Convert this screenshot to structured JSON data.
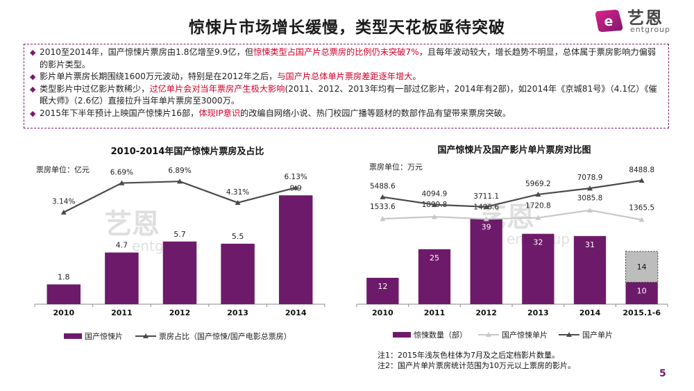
{
  "page": {
    "title": "惊悚片市场增长缓慢，类型天花板亟待突破",
    "page_number": "5",
    "logo": {
      "cn": "艺恩",
      "en": "entgroup"
    },
    "watermark": {
      "cn": "艺恩",
      "en": "entgroup"
    }
  },
  "bullets": [
    {
      "parts": [
        "2010至2014年，国产惊悚片票房由1.8亿增至9.9亿，但",
        "惊悚类型占国产片总票房的比例仍未突破7%",
        "，且每年波动较大，增长趋势不明显，总体属于票房影响力偏弱的影片类型。"
      ]
    },
    {
      "parts": [
        "影片单片票房长期围绕1600万元波动，特别是在2012年之后，",
        "与国产片总体单片票房差距逐年增大",
        "。"
      ]
    },
    {
      "parts": [
        "类型影片中过亿影片数稀少，",
        "过亿单片会对当年票房产生极大影响",
        "(2011、2012、2013年均有一部过亿影片，2014年有2部)，如2014年《京城81号》（4.1亿）《催眠大师》（2.6亿）直接拉升当年单片票房至3000万。"
      ]
    },
    {
      "parts": [
        "2015年下半年预计上映国产惊悚片16部，",
        "体现IP意识",
        "的改编自网络小说、热门校园广播等题材的数部作品有望带来票房突破。"
      ]
    }
  ],
  "chart_data": [
    {
      "type": "bar+line",
      "title": "2010-2014年国产惊悚片票房及占比",
      "unit_label": "票房单位：亿元",
      "categories": [
        "2010",
        "2011",
        "2012",
        "2013",
        "2014"
      ],
      "bars": {
        "name": "国产惊悚片",
        "values": [
          1.8,
          4.7,
          5.7,
          5.5,
          9.9
        ],
        "labels": [
          "1.8",
          "4.7",
          "5.7",
          "5.5",
          "9.9"
        ],
        "color": "#6e1a6a"
      },
      "line": {
        "name": "票房占比（国产惊悚/国产电影总票房）",
        "values": [
          3.14,
          6.69,
          6.89,
          4.31,
          6.13
        ],
        "labels": [
          "3.14%",
          "6.69%",
          "6.89%",
          "4.31%",
          "6.13%"
        ],
        "color": "#4a4a4a"
      },
      "ylim_bars": [
        0,
        12
      ],
      "ylim_line": [
        -8,
        8
      ]
    },
    {
      "type": "bar+line",
      "title": "国产惊悚片及国产影片单片票房对比图",
      "unit_label": "票房单位：万元",
      "categories": [
        "2010",
        "2011",
        "2012",
        "2013",
        "2014",
        "2015.1-6"
      ],
      "bars": {
        "name": "惊悚数量（部）",
        "values": [
          12,
          25,
          39,
          32,
          31,
          10
        ],
        "labels": [
          "12",
          "25",
          "39",
          "32",
          "31",
          "10"
        ],
        "color": "#6e1a6a"
      },
      "bar_extra": {
        "category": "2015.1-6",
        "value": 14,
        "label": "14",
        "color": "#bdbdbd"
      },
      "series": [
        {
          "name": "国产惊悚单片",
          "values": [
            1533.6,
            1899.8,
            1496.6,
            1720.8,
            3085.8,
            1365.5
          ],
          "labels": [
            "1533.6",
            "1899.8",
            "1496.6",
            "1720.8",
            "3085.8",
            "1365.5"
          ],
          "color": "#c8c8c8"
        },
        {
          "name": "国产单片",
          "values": [
            5488.6,
            4094.9,
            3711.1,
            5969.2,
            7078.9,
            8488.8
          ],
          "labels": [
            "5488.6",
            "4094.9",
            "3711.1",
            "5969.2",
            "7078.9",
            "8488.8"
          ],
          "color": "#4a4a4a"
        }
      ],
      "ylim_bars": [
        0,
        60
      ],
      "ylim_line": [
        -14000,
        10000
      ]
    }
  ],
  "notes": [
    "注1：2015年浅灰色柱体为7月及之后定档影片数量。",
    "注2：国产片单片票房统计范围为10万元以上票房的影片。"
  ],
  "colors": {
    "accent": "#7a1a6e",
    "highlight": "#d4002a",
    "bar": "#6e1a6a",
    "line_dark": "#4a4a4a",
    "line_light": "#c8c8c8"
  }
}
